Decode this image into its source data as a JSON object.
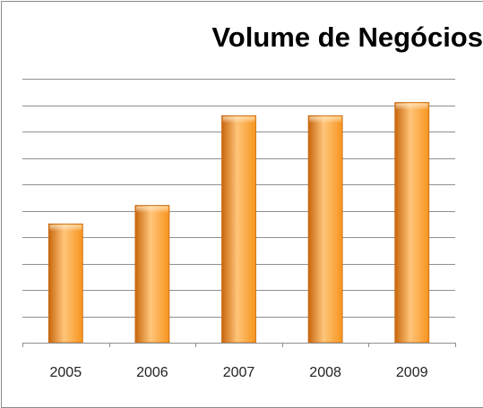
{
  "chart_data": {
    "type": "bar",
    "title": "Volume de Negócios",
    "categories": [
      "2005",
      "2006",
      "2007",
      "2008",
      "2009"
    ],
    "values": [
      4.5,
      5.2,
      8.6,
      8.6,
      9.1
    ],
    "ylim": [
      0,
      10
    ],
    "grid": true,
    "legend": "none",
    "colors": {
      "bar": "#f7941d",
      "bar_light": "#ffc57a",
      "bar_dark": "#c8660c",
      "grid": "#8f8f8f",
      "axis": "#8f8f8f"
    }
  }
}
